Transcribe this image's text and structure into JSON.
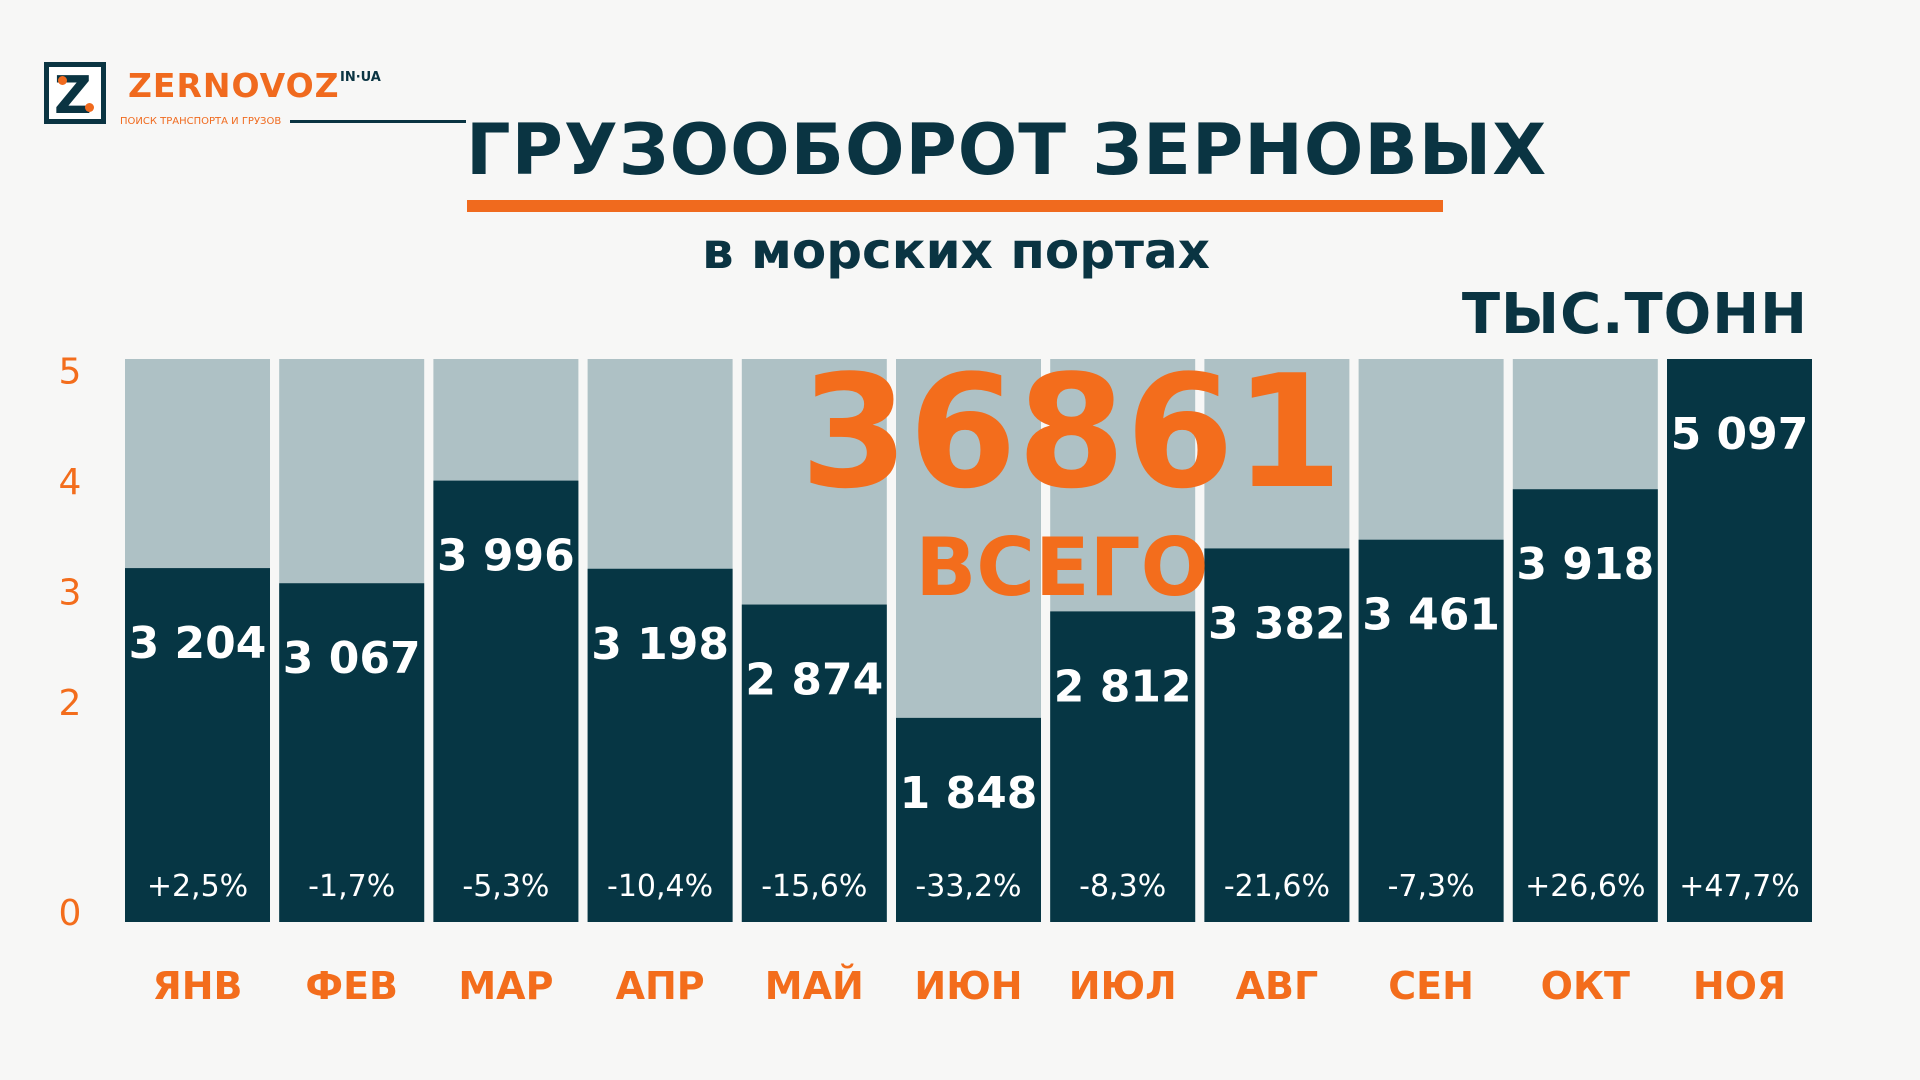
{
  "logo": {
    "brand": "ZERNOVOZ",
    "domain": "IN·UA",
    "tagline": "ПОИСК ТРАНСПОРТА И ГРУЗОВ"
  },
  "header": {
    "title": "ГРУЗООБОРОТ ЗЕРНОВЫХ",
    "subtitle": "в морских портах",
    "unit": "ТЫС.ТОНН"
  },
  "total": {
    "value": "36861",
    "label": "ВСЕГО"
  },
  "colors": {
    "bar": "#063644",
    "bar_background": "#aec1c5",
    "accent": "#f36d1c",
    "text_dark": "#0a3442",
    "background": "#f7f7f6"
  },
  "chart_data": {
    "type": "bar",
    "categories": [
      "ЯНВ",
      "ФЕВ",
      "МАР",
      "АПР",
      "МАЙ",
      "ИЮН",
      "ИЮЛ",
      "АВГ",
      "СЕН",
      "ОКТ",
      "НОЯ"
    ],
    "values": [
      3204,
      3067,
      3996,
      3198,
      2874,
      1848,
      2812,
      3382,
      3461,
      3918,
      5097
    ],
    "value_labels": [
      "3 204",
      "3 067",
      "3 996",
      "3 198",
      "2 874",
      "1 848",
      "2 812",
      "3 382",
      "3 461",
      "3 918",
      "5 097"
    ],
    "change_labels": [
      "+2,5%",
      "-1,7%",
      "-5,3%",
      "-10,4%",
      "-15,6%",
      "-33,2%",
      "-8,3%",
      "-21,6%",
      "-7,3%",
      "+26,6%",
      "+47,7%"
    ],
    "yticks": [
      "0",
      "2",
      "3",
      "4",
      "5"
    ],
    "ylim_thousands": [
      0,
      5.1
    ],
    "grid": false,
    "legend": "none"
  }
}
